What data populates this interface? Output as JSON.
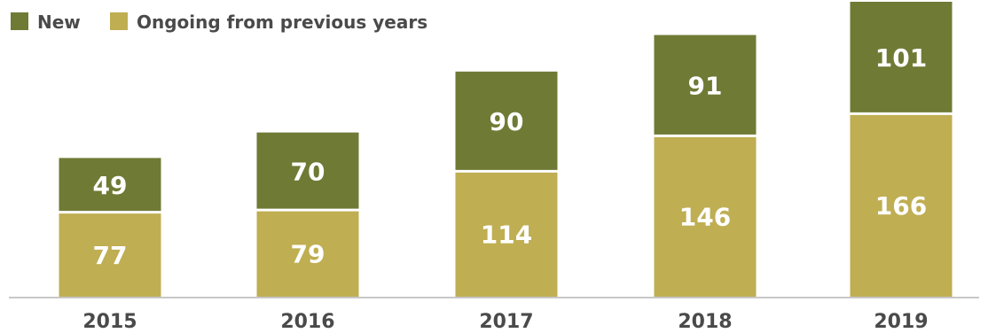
{
  "chart_data": {
    "type": "bar",
    "stacked": true,
    "categories": [
      "2015",
      "2016",
      "2017",
      "2018",
      "2019"
    ],
    "series": [
      {
        "name": "Ongoing from previous years",
        "color": "#bfae52",
        "values": [
          77,
          79,
          114,
          146,
          166
        ]
      },
      {
        "name": "New",
        "color": "#6f7a35",
        "values": [
          49,
          70,
          90,
          91,
          101
        ]
      }
    ],
    "legend_order": [
      "New",
      "Ongoing from previous years"
    ],
    "legend_placement": "top-left",
    "grid": false,
    "xlabel": "",
    "ylabel": "",
    "ylim": [
      0,
      267
    ]
  }
}
